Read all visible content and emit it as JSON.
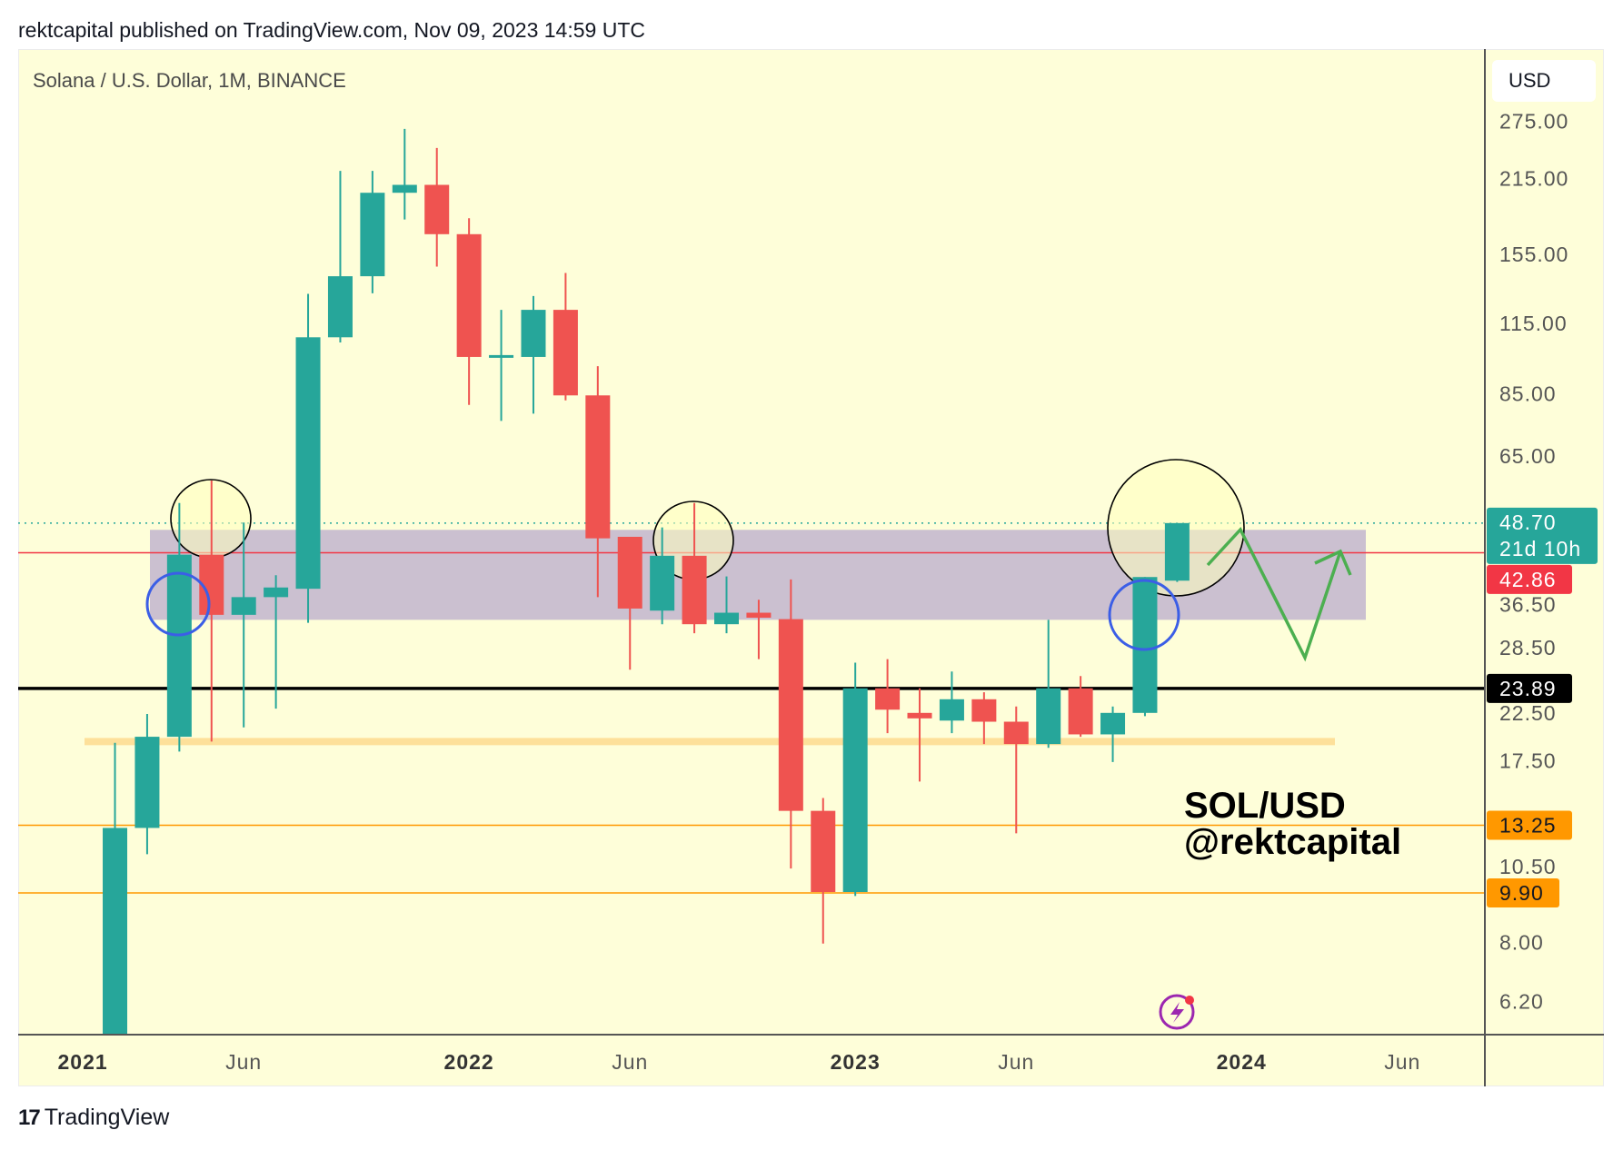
{
  "header": "rektcapital published on TradingView.com, Nov 09, 2023 14:59 UTC",
  "footer": {
    "logo_glyph": "17",
    "brand": "TradingView"
  },
  "chart_data": {
    "type": "candlestick",
    "title": "Solana / U.S. Dollar, 1M, BINANCE",
    "currency_label": "USD",
    "yscale": "log",
    "ylim": [
      5.38,
      300
    ],
    "colors": {
      "up": "#26a69a",
      "down": "#ef5350"
    },
    "months_start": "2021-01",
    "candles": [
      {
        "t": 1,
        "o": 4.3,
        "h": 18.9,
        "l": 4.2,
        "c": 13.1
      },
      {
        "t": 2,
        "o": 13.1,
        "h": 21.4,
        "l": 11.7,
        "c": 19.4
      },
      {
        "t": 3,
        "o": 19.4,
        "h": 53.1,
        "l": 18.2,
        "c": 42.5
      },
      {
        "t": 4,
        "o": 42.5,
        "h": 58.5,
        "l": 19.0,
        "c": 32.8
      },
      {
        "t": 5,
        "o": 32.8,
        "h": 48.8,
        "l": 20.2,
        "c": 35.4
      },
      {
        "t": 6,
        "o": 35.4,
        "h": 38.9,
        "l": 21.9,
        "c": 36.9
      },
      {
        "t": 7,
        "o": 36.7,
        "h": 130.7,
        "l": 31.7,
        "c": 108.4
      },
      {
        "t": 8,
        "o": 108.4,
        "h": 222,
        "l": 106,
        "c": 141
      },
      {
        "t": 9,
        "o": 141,
        "h": 222,
        "l": 131,
        "c": 202
      },
      {
        "t": 10,
        "o": 202,
        "h": 266,
        "l": 180,
        "c": 209
      },
      {
        "t": 11,
        "o": 209,
        "h": 245,
        "l": 147,
        "c": 169
      },
      {
        "t": 12,
        "o": 169,
        "h": 181,
        "l": 81,
        "c": 99.6
      },
      {
        "t": 13,
        "o": 99.6,
        "h": 122,
        "l": 75.6,
        "c": 100.4
      },
      {
        "t": 14,
        "o": 99.6,
        "h": 129.5,
        "l": 78,
        "c": 122
      },
      {
        "t": 15,
        "o": 122,
        "h": 143,
        "l": 82.6,
        "c": 84.4
      },
      {
        "t": 16,
        "o": 84.4,
        "h": 95.7,
        "l": 35.4,
        "c": 45.6
      },
      {
        "t": 17,
        "o": 45.9,
        "h": 45.9,
        "l": 25.9,
        "c": 33.7
      },
      {
        "t": 18,
        "o": 33.4,
        "h": 47.8,
        "l": 31.5,
        "c": 42.3
      },
      {
        "t": 19,
        "o": 42.3,
        "h": 53.1,
        "l": 30.3,
        "c": 31.5
      },
      {
        "t": 20,
        "o": 31.5,
        "h": 38.7,
        "l": 30.3,
        "c": 33.1
      },
      {
        "t": 21,
        "o": 33.1,
        "h": 35.0,
        "l": 27.1,
        "c": 32.4
      },
      {
        "t": 22,
        "o": 32.2,
        "h": 38.2,
        "l": 11.0,
        "c": 14.1
      },
      {
        "t": 23,
        "o": 14.1,
        "h": 14.9,
        "l": 7.96,
        "c": 9.94
      },
      {
        "t": 24,
        "o": 9.94,
        "h": 26.7,
        "l": 9.77,
        "c": 23.9
      },
      {
        "t": 25,
        "o": 23.9,
        "h": 27.1,
        "l": 19.7,
        "c": 21.8
      },
      {
        "t": 26,
        "o": 21.5,
        "h": 23.9,
        "l": 16.0,
        "c": 21.0
      },
      {
        "t": 27,
        "o": 20.8,
        "h": 25.7,
        "l": 19.7,
        "c": 22.8
      },
      {
        "t": 28,
        "o": 22.8,
        "h": 23.5,
        "l": 18.8,
        "c": 20.7
      },
      {
        "t": 29,
        "o": 20.7,
        "h": 22.1,
        "l": 12.8,
        "c": 18.8
      },
      {
        "t": 30,
        "o": 18.8,
        "h": 32.1,
        "l": 18.5,
        "c": 23.9
      },
      {
        "t": 31,
        "o": 23.9,
        "h": 25.2,
        "l": 19.4,
        "c": 19.6
      },
      {
        "t": 32,
        "o": 19.6,
        "h": 22.1,
        "l": 17.4,
        "c": 21.5
      },
      {
        "t": 33,
        "o": 21.5,
        "h": 38.6,
        "l": 21.2,
        "c": 38.6
      },
      {
        "t": 34,
        "o": 38.0,
        "h": 48.7,
        "l": 37.8,
        "c": 48.7
      }
    ],
    "y_ticks": [
      {
        "label": "275.00",
        "v": 275
      },
      {
        "label": "215.00",
        "v": 215
      },
      {
        "label": "155.00",
        "v": 155
      },
      {
        "label": "115.00",
        "v": 115
      },
      {
        "label": "85.00",
        "v": 85
      },
      {
        "label": "65.00",
        "v": 65
      },
      {
        "label": "36.50",
        "v": 36.5
      },
      {
        "label": "28.50",
        "v": 28.5
      },
      {
        "label": "22.50",
        "v": 22.5
      },
      {
        "label": "17.50",
        "v": 17.5
      },
      {
        "label": "10.50",
        "v": 10.5
      },
      {
        "label": "8.00",
        "v": 8.0
      },
      {
        "label": "6.20",
        "v": 6.2
      }
    ],
    "x_ticks": [
      {
        "label": "2021",
        "t": 0,
        "bold": true
      },
      {
        "label": "Jun",
        "t": 5
      },
      {
        "label": "2022",
        "t": 12,
        "bold": true
      },
      {
        "label": "Jun",
        "t": 17
      },
      {
        "label": "2023",
        "t": 24,
        "bold": true
      },
      {
        "label": "Jun",
        "t": 29
      },
      {
        "label": "2024",
        "t": 36,
        "bold": true
      },
      {
        "label": "Jun",
        "t": 41
      }
    ],
    "price_lines": [
      {
        "name": "last-price-line",
        "v": 48.7,
        "label": "48.70",
        "sublabel": "21d 10h",
        "color": "#26a69a",
        "style": "dotted",
        "text": "#ffffff"
      },
      {
        "name": "red-level-line",
        "v": 42.86,
        "label": "42.86",
        "color": "#f23645",
        "style": "solid",
        "text": "#ffffff"
      },
      {
        "name": "black-level-line",
        "v": 23.89,
        "label": "23.89",
        "color": "#000000",
        "style": "thick",
        "text": "#ffffff"
      },
      {
        "name": "orange-level-line-1",
        "v": 13.25,
        "label": "13.25",
        "color": "#ff9800",
        "style": "solid",
        "text": "#131722"
      },
      {
        "name": "orange-level-line-2",
        "v": 9.9,
        "label": "9.90",
        "color": "#ff9800",
        "style": "solid",
        "text": "#131722"
      }
    ],
    "zones": {
      "purple_range": [
        32.1,
        47.3
      ],
      "support_band": 19.0
    },
    "watermark": [
      "SOL/USD",
      "@rektcapital"
    ]
  }
}
